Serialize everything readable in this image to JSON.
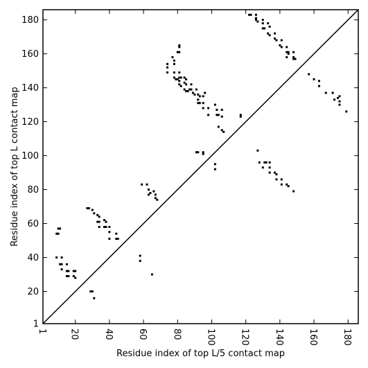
{
  "chart_data": {
    "type": "scatter",
    "title": "",
    "xlabel": "Residue index of top L/5 contact map",
    "ylabel": "Residue index of top L contact map",
    "xlim": [
      1,
      186
    ],
    "ylim": [
      1,
      186
    ],
    "xticks": [
      1,
      20,
      40,
      60,
      80,
      100,
      120,
      140,
      160,
      180
    ],
    "yticks": [
      1,
      20,
      40,
      60,
      80,
      100,
      120,
      140,
      160,
      180
    ],
    "grid": false,
    "legend": "none",
    "marker": "square",
    "marker_color": "#000000",
    "diagonal": {
      "from": [
        1,
        1
      ],
      "to": [
        186,
        186
      ],
      "color": "#000000"
    },
    "series": [
      {
        "label_role": "below diagonal (top L/5 map)",
        "points": [
          [
            9,
            54
          ],
          [
            10,
            54
          ],
          [
            10,
            57
          ],
          [
            11,
            57
          ],
          [
            9,
            40
          ],
          [
            12,
            40
          ],
          [
            11,
            36
          ],
          [
            12,
            36
          ],
          [
            12,
            33
          ],
          [
            15,
            36
          ],
          [
            15,
            32
          ],
          [
            16,
            32
          ],
          [
            15,
            29
          ],
          [
            16,
            29
          ],
          [
            19,
            32
          ],
          [
            20,
            32
          ],
          [
            19,
            29
          ],
          [
            20,
            28
          ],
          [
            27,
            69
          ],
          [
            28,
            69
          ],
          [
            30,
            68
          ],
          [
            31,
            66
          ],
          [
            33,
            65
          ],
          [
            34,
            64
          ],
          [
            34,
            61
          ],
          [
            33,
            61
          ],
          [
            37,
            62
          ],
          [
            38,
            61
          ],
          [
            34,
            58
          ],
          [
            37,
            58
          ],
          [
            38,
            58
          ],
          [
            40,
            58
          ],
          [
            40,
            55
          ],
          [
            40,
            51
          ],
          [
            44,
            54
          ],
          [
            44,
            51
          ],
          [
            45,
            51
          ],
          [
            29,
            20
          ],
          [
            30,
            20
          ],
          [
            31,
            16
          ],
          [
            58,
            41
          ],
          [
            58,
            38
          ],
          [
            59,
            83
          ],
          [
            62,
            83
          ],
          [
            63,
            80
          ],
          [
            63,
            77
          ],
          [
            64,
            78
          ],
          [
            66,
            79
          ],
          [
            67,
            77
          ],
          [
            67,
            75
          ],
          [
            68,
            74
          ],
          [
            65,
            30
          ]
        ]
      },
      {
        "label_role": "above diagonal (top L map)",
        "points": [
          [
            74,
            154
          ],
          [
            74,
            152
          ],
          [
            74,
            149
          ],
          [
            77,
            158
          ],
          [
            78,
            156
          ],
          [
            78,
            154
          ],
          [
            78,
            149
          ],
          [
            80,
            161
          ],
          [
            81,
            161
          ],
          [
            81,
            164
          ],
          [
            81,
            165
          ],
          [
            81,
            149
          ],
          [
            78,
            146
          ],
          [
            79,
            145
          ],
          [
            80,
            145
          ],
          [
            81,
            146
          ],
          [
            82,
            146
          ],
          [
            81,
            144
          ],
          [
            81,
            142
          ],
          [
            82,
            141
          ],
          [
            84,
            146
          ],
          [
            85,
            145
          ],
          [
            84,
            143
          ],
          [
            85,
            142
          ],
          [
            84,
            139
          ],
          [
            85,
            138
          ],
          [
            86,
            138
          ],
          [
            87,
            139
          ],
          [
            88,
            142
          ],
          [
            88,
            139
          ],
          [
            89,
            137
          ],
          [
            90,
            136
          ],
          [
            91,
            139
          ],
          [
            92,
            136
          ],
          [
            93,
            135
          ],
          [
            92,
            133
          ],
          [
            92,
            131
          ],
          [
            93,
            131
          ],
          [
            95,
            131
          ],
          [
            95,
            135
          ],
          [
            96,
            137
          ],
          [
            95,
            128
          ],
          [
            98,
            128
          ],
          [
            98,
            124
          ],
          [
            102,
            130
          ],
          [
            103,
            127
          ],
          [
            103,
            124
          ],
          [
            104,
            124
          ],
          [
            106,
            127
          ],
          [
            106,
            123
          ],
          [
            106,
            115
          ],
          [
            107,
            114
          ],
          [
            104,
            117
          ],
          [
            117,
            124
          ],
          [
            117,
            123
          ],
          [
            91,
            102
          ],
          [
            92,
            102
          ],
          [
            95,
            102
          ],
          [
            95,
            101
          ],
          [
            102,
            95
          ],
          [
            102,
            92
          ],
          [
            122,
            183
          ],
          [
            123,
            183
          ],
          [
            126,
            183
          ],
          [
            126,
            181
          ],
          [
            126,
            180
          ],
          [
            127,
            179
          ],
          [
            130,
            180
          ],
          [
            130,
            178
          ],
          [
            130,
            175
          ],
          [
            131,
            175
          ],
          [
            133,
            178
          ],
          [
            134,
            176
          ],
          [
            133,
            172
          ],
          [
            134,
            171
          ],
          [
            137,
            172
          ],
          [
            137,
            169
          ],
          [
            138,
            168
          ],
          [
            141,
            168
          ],
          [
            140,
            165
          ],
          [
            141,
            164
          ],
          [
            144,
            164
          ],
          [
            144,
            161
          ],
          [
            145,
            161
          ],
          [
            145,
            160
          ],
          [
            144,
            158
          ],
          [
            148,
            161
          ],
          [
            148,
            158
          ],
          [
            148,
            157
          ],
          [
            149,
            157
          ],
          [
            127,
            103
          ],
          [
            128,
            96
          ],
          [
            131,
            96
          ],
          [
            130,
            93
          ],
          [
            132,
            96
          ],
          [
            134,
            96
          ],
          [
            134,
            93
          ],
          [
            134,
            90
          ],
          [
            137,
            90
          ],
          [
            138,
            89
          ],
          [
            138,
            86
          ],
          [
            141,
            86
          ],
          [
            141,
            83
          ],
          [
            144,
            83
          ],
          [
            145,
            82
          ],
          [
            148,
            79
          ],
          [
            157,
            148
          ],
          [
            160,
            145
          ],
          [
            163,
            144
          ],
          [
            163,
            141
          ],
          [
            167,
            137
          ],
          [
            171,
            137
          ],
          [
            172,
            133
          ],
          [
            174,
            134
          ],
          [
            175,
            135
          ],
          [
            175,
            132
          ],
          [
            175,
            130
          ],
          [
            179,
            126
          ]
        ]
      }
    ]
  }
}
